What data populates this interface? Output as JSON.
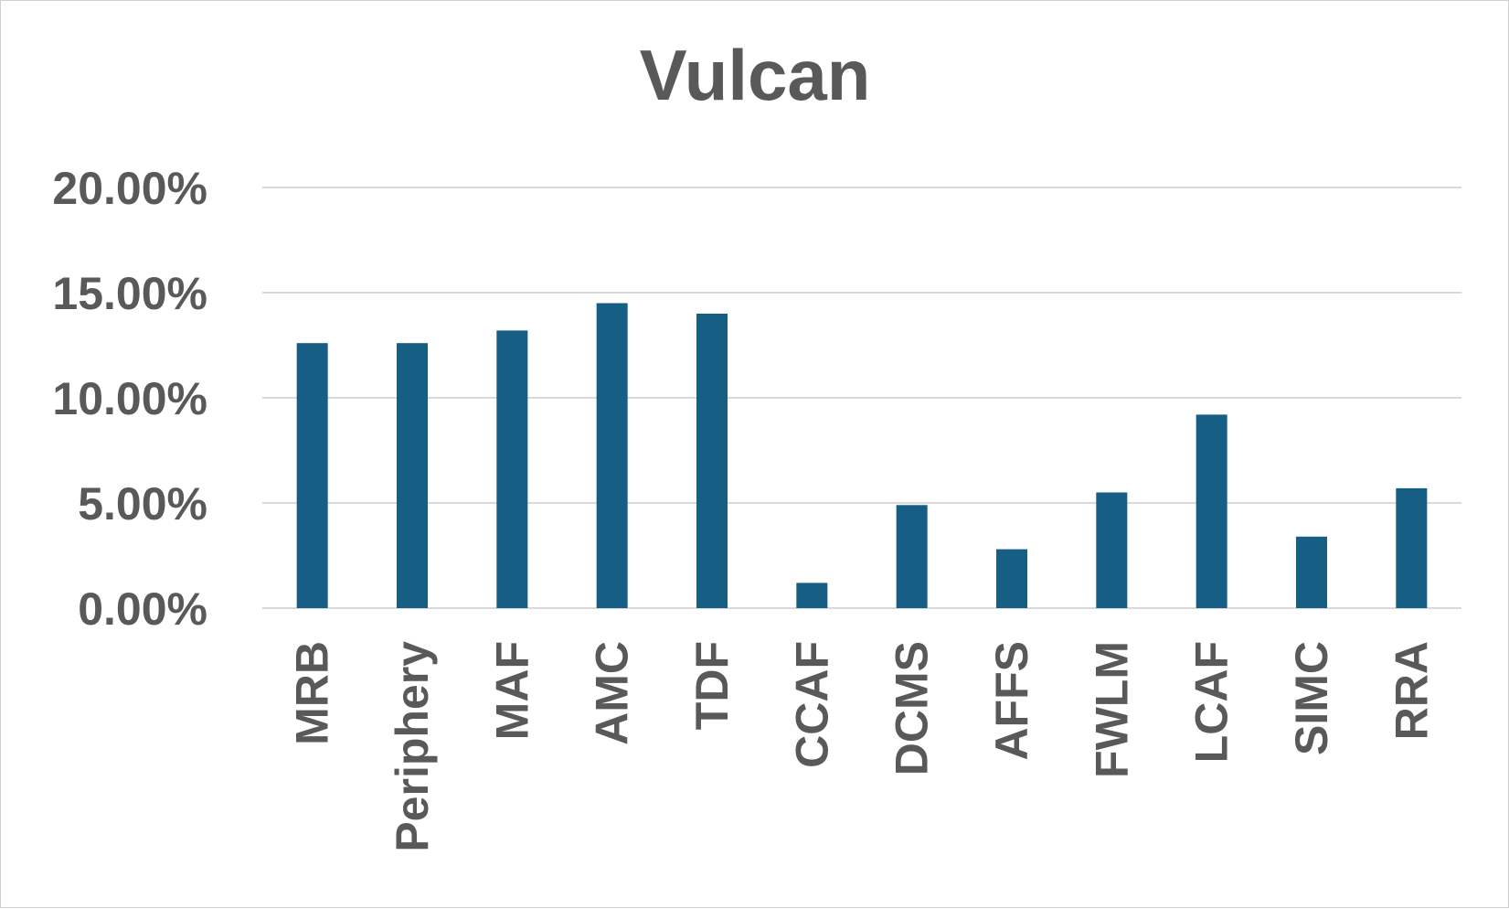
{
  "chart_data": {
    "type": "bar",
    "title": "Vulcan",
    "xlabel": "",
    "ylabel": "",
    "categories": [
      "MRB",
      "Periphery",
      "MAF",
      "AMC",
      "TDF",
      "CCAF",
      "DCMS",
      "AFFS",
      "FWLM",
      "LCAF",
      "SIMC",
      "RRA"
    ],
    "values": [
      0.126,
      0.126,
      0.132,
      0.145,
      0.14,
      0.012,
      0.049,
      0.028,
      0.055,
      0.092,
      0.034,
      0.057
    ],
    "ylim": [
      0,
      0.2
    ],
    "yticks": [
      0,
      0.05,
      0.1,
      0.15,
      0.2
    ],
    "ytick_labels": [
      "0.00%",
      "5.00%",
      "10.00%",
      "15.00%",
      "20.00%"
    ],
    "grid": true,
    "legend": "none",
    "bar_color": "#175E84"
  }
}
